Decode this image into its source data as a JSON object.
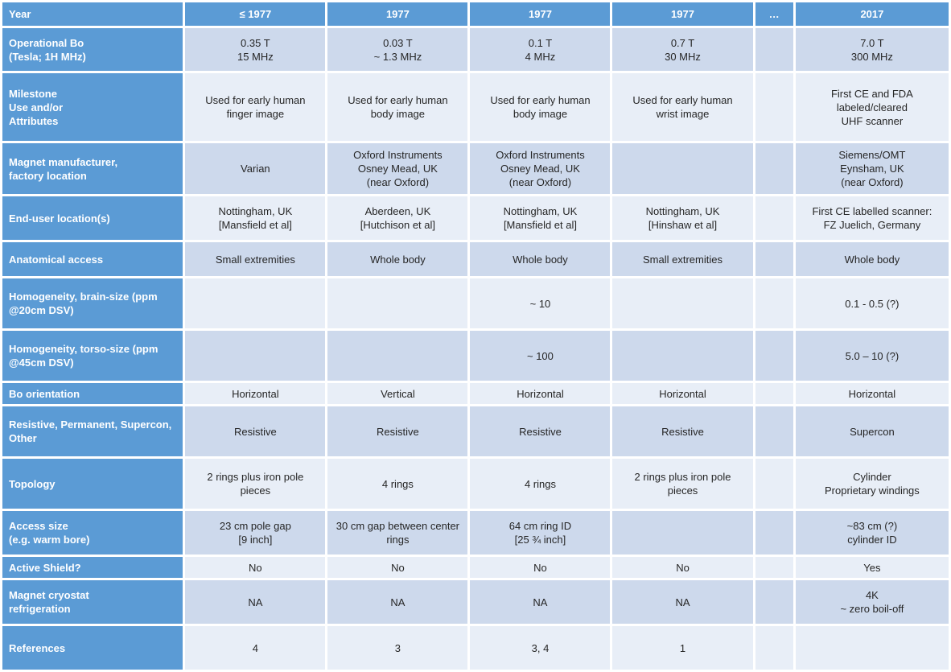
{
  "header": {
    "label": "Year",
    "values": [
      "≤ 1977",
      "1977",
      "1977",
      "1977",
      "…",
      "2017"
    ]
  },
  "rows": [
    {
      "label": "Operational Bo\n(Tesla; 1H MHz)",
      "values": [
        "0.35 T\n15 MHz",
        "0.03 T\n~ 1.3 MHz",
        "0.1 T\n4  MHz",
        "0.7 T\n30 MHz",
        "",
        "7.0 T\n300 MHz"
      ]
    },
    {
      "label": "Milestone\nUse and/or\nAttributes",
      "values": [
        "Used for early human\nfinger image",
        "Used for early human\nbody image",
        "Used for early human\nbody image",
        "Used for early human\nwrist image",
        "",
        "First CE and FDA\nlabeled/cleared\nUHF scanner"
      ]
    },
    {
      "label": "Magnet manufacturer,\nfactory location",
      "values": [
        "Varian",
        "Oxford Instruments\nOsney Mead, UK\n(near Oxford)",
        "Oxford Instruments\nOsney Mead, UK\n(near Oxford)",
        "",
        "",
        "Siemens/OMT\nEynsham, UK\n(near Oxford)"
      ]
    },
    {
      "label": "End-user location(s)",
      "values": [
        "Nottingham, UK\n[Mansfield et al]",
        "Aberdeen, UK\n[Hutchison et al]",
        "Nottingham, UK\n[Mansfield et al]",
        "Nottingham, UK\n[Hinshaw et al]",
        "",
        "First CE labelled scanner:\nFZ Juelich, Germany"
      ]
    },
    {
      "label": "Anatomical access",
      "values": [
        "Small extremities",
        "Whole body",
        "Whole body",
        "Small extremities",
        "",
        "Whole body"
      ]
    },
    {
      "label": "Homogeneity, brain-size (ppm\n@20cm DSV)",
      "values": [
        "",
        "",
        "~ 10",
        "",
        "",
        "0.1 - 0.5 (?)"
      ]
    },
    {
      "label": "Homogeneity, torso-size (ppm\n@45cm DSV)",
      "values": [
        "",
        "",
        "~ 100",
        "",
        "",
        "5.0 – 10 (?)"
      ]
    },
    {
      "label": "Bo orientation",
      "values": [
        "Horizontal",
        "Vertical",
        "Horizontal",
        "Horizontal",
        "",
        "Horizontal"
      ]
    },
    {
      "label": "Resistive, Permanent, Supercon,\nOther",
      "values": [
        "Resistive",
        "Resistive",
        "Resistive",
        "Resistive",
        "",
        "Supercon"
      ]
    },
    {
      "label": "Topology",
      "values": [
        "2 rings plus iron pole\npieces",
        "4 rings",
        "4 rings",
        "2 rings plus iron pole\npieces",
        "",
        "Cylinder\nProprietary windings"
      ]
    },
    {
      "label": "Access size\n(e.g. warm bore)",
      "values": [
        "23 cm pole gap\n[9 inch]",
        "30 cm gap between center\nrings",
        "64 cm ring ID\n[25 ¾ inch]",
        "",
        "",
        "~83 cm (?)\ncylinder ID"
      ]
    },
    {
      "label": "Active Shield?",
      "values": [
        "No",
        "No",
        "No",
        "No",
        "",
        "Yes"
      ]
    },
    {
      "label": "Magnet cryostat\nrefrigeration",
      "values": [
        "NA",
        "NA",
        "NA",
        "NA",
        "",
        "4K\n~ zero boil-off"
      ]
    },
    {
      "label": "References",
      "values": [
        "4",
        "3",
        "3, 4",
        "1",
        "",
        ""
      ]
    }
  ],
  "colors": {
    "header_blue": "#5b9bd5",
    "row_dark": "#cdd9ec",
    "row_light": "#e8eef7"
  }
}
